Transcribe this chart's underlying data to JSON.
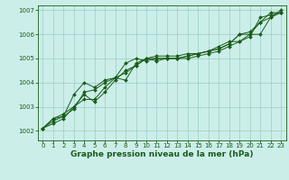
{
  "title": "Graphe pression niveau de la mer (hPa)",
  "bg_color": "#cceee8",
  "grid_color": "#99cccc",
  "line_color": "#1a5c1a",
  "marker": "D",
  "marker_size": 2.0,
  "linewidth": 0.7,
  "xlim": [
    -0.5,
    23.5
  ],
  "ylim": [
    1001.6,
    1007.2
  ],
  "xticks": [
    0,
    1,
    2,
    3,
    4,
    5,
    6,
    7,
    8,
    9,
    10,
    11,
    12,
    13,
    14,
    15,
    16,
    17,
    18,
    19,
    20,
    21,
    22,
    23
  ],
  "yticks": [
    1002,
    1003,
    1004,
    1005,
    1006,
    1007
  ],
  "xlabel_fontsize": 6.5,
  "tick_fontsize": 5.0,
  "series": [
    [
      1002.1,
      1002.4,
      1002.6,
      1002.9,
      1003.6,
      1003.7,
      1004.0,
      1004.2,
      1004.1,
      1004.8,
      1005.0,
      1004.9,
      1005.0,
      1005.0,
      1005.0,
      1005.1,
      1005.2,
      1005.3,
      1005.5,
      1005.7,
      1005.9,
      1006.7,
      1006.8,
      1006.9
    ],
    [
      1002.1,
      1002.3,
      1002.5,
      1003.0,
      1003.5,
      1003.2,
      1003.6,
      1004.1,
      1004.5,
      1004.7,
      1005.0,
      1005.1,
      1005.1,
      1005.1,
      1005.2,
      1005.2,
      1005.3,
      1005.4,
      1005.6,
      1006.0,
      1006.1,
      1006.5,
      1006.9,
      1006.9
    ],
    [
      1002.1,
      1002.5,
      1002.6,
      1003.5,
      1004.0,
      1003.8,
      1004.1,
      1004.2,
      1004.8,
      1005.0,
      1004.9,
      1005.0,
      1005.0,
      1005.0,
      1005.1,
      1005.2,
      1005.3,
      1005.4,
      1005.6,
      1006.0,
      1006.0,
      1006.5,
      1006.7,
      1006.9
    ],
    [
      1002.1,
      1002.5,
      1002.7,
      1003.0,
      1003.3,
      1003.3,
      1003.8,
      1004.2,
      1004.4,
      1004.7,
      1005.0,
      1005.0,
      1005.0,
      1005.0,
      1005.1,
      1005.2,
      1005.3,
      1005.5,
      1005.7,
      1005.7,
      1006.0,
      1006.0,
      1006.7,
      1007.0
    ]
  ]
}
